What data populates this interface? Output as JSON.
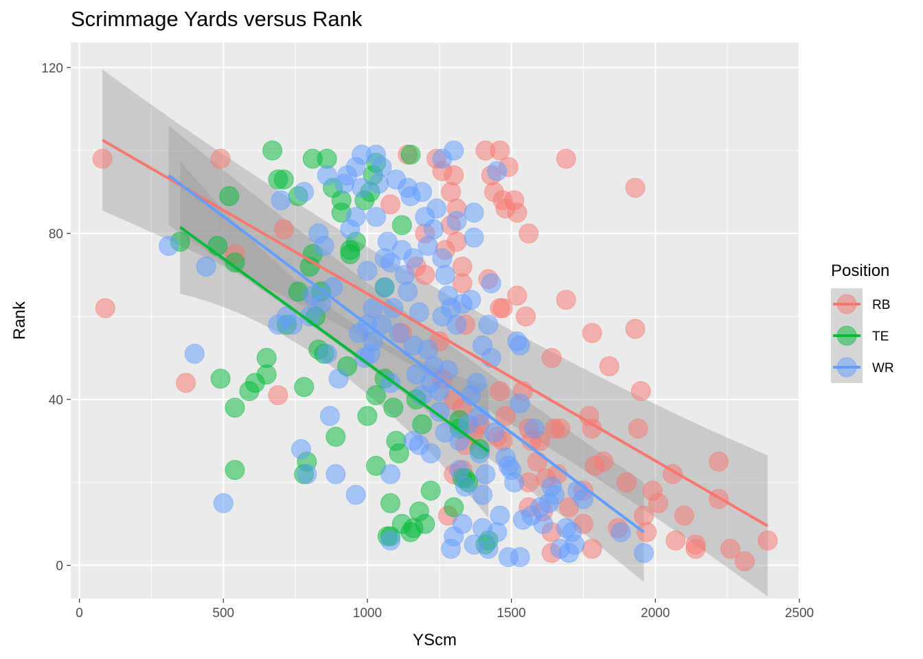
{
  "chart_data": {
    "type": "scatter",
    "title": "Scrimmage Yards versus Rank",
    "xlabel": "YScm",
    "ylabel": "Rank",
    "xlim": [
      -30,
      2500
    ],
    "ylim": [
      -8,
      126
    ],
    "xticks": [
      0,
      500,
      1000,
      1500,
      2000,
      2500
    ],
    "yticks": [
      0,
      40,
      80,
      120
    ],
    "grid": true,
    "legend": {
      "title": "Position",
      "placement": "right"
    },
    "series": [
      {
        "name": "RB",
        "color": "#F8766D",
        "fit": {
          "x": [
            80,
            2390
          ],
          "y": [
            102.5,
            9.5
          ],
          "band_half_width": [
            17,
            11
          ]
        },
        "points": [
          [
            80,
            98
          ],
          [
            90,
            62
          ],
          [
            490,
            98
          ],
          [
            540,
            75
          ],
          [
            370,
            44
          ],
          [
            690,
            41
          ],
          [
            710,
            81
          ],
          [
            1080,
            87
          ],
          [
            1120,
            56
          ],
          [
            1140,
            99
          ],
          [
            1170,
            72
          ],
          [
            1200,
            80
          ],
          [
            1200,
            70
          ],
          [
            1240,
            98
          ],
          [
            1260,
            95
          ],
          [
            1270,
            76
          ],
          [
            1290,
            82
          ],
          [
            1290,
            90
          ],
          [
            1300,
            94
          ],
          [
            1310,
            78
          ],
          [
            1310,
            86
          ],
          [
            1330,
            72
          ],
          [
            1330,
            68
          ],
          [
            1340,
            58
          ],
          [
            1250,
            54
          ],
          [
            1260,
            45
          ],
          [
            1300,
            40
          ],
          [
            1330,
            38
          ],
          [
            1340,
            29
          ],
          [
            1330,
            23
          ],
          [
            1300,
            22
          ],
          [
            1280,
            12
          ],
          [
            1410,
            100
          ],
          [
            1430,
            94
          ],
          [
            1440,
            90
          ],
          [
            1460,
            100
          ],
          [
            1470,
            88
          ],
          [
            1480,
            86
          ],
          [
            1490,
            96
          ],
          [
            1510,
            88
          ],
          [
            1520,
            85
          ],
          [
            1560,
            80
          ],
          [
            1420,
            69
          ],
          [
            1460,
            62
          ],
          [
            1470,
            62
          ],
          [
            1520,
            65
          ],
          [
            1550,
            60
          ],
          [
            1460,
            42
          ],
          [
            1480,
            36
          ],
          [
            1450,
            31
          ],
          [
            1470,
            30
          ],
          [
            1540,
            42
          ],
          [
            1560,
            33
          ],
          [
            1570,
            30
          ],
          [
            1590,
            25
          ],
          [
            1600,
            30
          ],
          [
            1620,
            21
          ],
          [
            1650,
            33
          ],
          [
            1670,
            33
          ],
          [
            1690,
            98
          ],
          [
            1640,
            50
          ],
          [
            1690,
            64
          ],
          [
            1780,
            56
          ],
          [
            1770,
            36
          ],
          [
            1780,
            33
          ],
          [
            1790,
            24
          ],
          [
            1750,
            18
          ],
          [
            1750,
            10
          ],
          [
            1700,
            14
          ],
          [
            1640,
            8
          ],
          [
            1640,
            3
          ],
          [
            1840,
            48
          ],
          [
            1820,
            25
          ],
          [
            1870,
            9
          ],
          [
            1900,
            20
          ],
          [
            1930,
            91
          ],
          [
            1930,
            57
          ],
          [
            1950,
            42
          ],
          [
            1940,
            33
          ],
          [
            1960,
            12
          ],
          [
            1970,
            8
          ],
          [
            1990,
            18
          ],
          [
            2010,
            15
          ],
          [
            2060,
            22
          ],
          [
            2070,
            6
          ],
          [
            2100,
            12
          ],
          [
            2140,
            5
          ],
          [
            2140,
            4
          ],
          [
            2220,
            25
          ],
          [
            2220,
            16
          ],
          [
            2260,
            4
          ],
          [
            2310,
            1
          ],
          [
            2390,
            6
          ],
          [
            1560,
            14
          ],
          [
            1610,
            13
          ],
          [
            1660,
            22
          ],
          [
            1780,
            4
          ],
          [
            1560,
            20
          ],
          [
            1370,
            32
          ],
          [
            1390,
            34
          ]
        ]
      },
      {
        "name": "TE",
        "color": "#00BA38",
        "fit": {
          "x": [
            350,
            1420
          ],
          "y": [
            81.5,
            27.5
          ],
          "band_half_width": [
            16,
            7
          ]
        },
        "points": [
          [
            350,
            78
          ],
          [
            480,
            77
          ],
          [
            490,
            45
          ],
          [
            520,
            89
          ],
          [
            540,
            73
          ],
          [
            540,
            38
          ],
          [
            540,
            23
          ],
          [
            590,
            42
          ],
          [
            610,
            44
          ],
          [
            650,
            50
          ],
          [
            650,
            46
          ],
          [
            670,
            100
          ],
          [
            690,
            93
          ],
          [
            710,
            93
          ],
          [
            720,
            58
          ],
          [
            760,
            66
          ],
          [
            760,
            89
          ],
          [
            780,
            43
          ],
          [
            790,
            25
          ],
          [
            780,
            22
          ],
          [
            800,
            72
          ],
          [
            810,
            75
          ],
          [
            810,
            98
          ],
          [
            820,
            60
          ],
          [
            830,
            52
          ],
          [
            840,
            66
          ],
          [
            850,
            51
          ],
          [
            860,
            98
          ],
          [
            880,
            91
          ],
          [
            890,
            31
          ],
          [
            910,
            85
          ],
          [
            910,
            88
          ],
          [
            930,
            48
          ],
          [
            940,
            76
          ],
          [
            940,
            75
          ],
          [
            960,
            78
          ],
          [
            990,
            88
          ],
          [
            1000,
            36
          ],
          [
            1010,
            90
          ],
          [
            1020,
            94
          ],
          [
            1030,
            97
          ],
          [
            1030,
            24
          ],
          [
            1030,
            41
          ],
          [
            1060,
            67
          ],
          [
            1070,
            7
          ],
          [
            1080,
            7
          ],
          [
            1080,
            15
          ],
          [
            1090,
            38
          ],
          [
            1110,
            27
          ],
          [
            1120,
            82
          ],
          [
            1120,
            10
          ],
          [
            1150,
            99
          ],
          [
            1150,
            8
          ],
          [
            1170,
            40
          ],
          [
            1160,
            9
          ],
          [
            1180,
            13
          ],
          [
            1190,
            34
          ],
          [
            1200,
            10
          ],
          [
            1220,
            18
          ],
          [
            1300,
            14
          ],
          [
            1320,
            35
          ],
          [
            1330,
            21
          ],
          [
            1340,
            21
          ],
          [
            1350,
            20
          ],
          [
            1420,
            6
          ],
          [
            1410,
            5
          ],
          [
            1320,
            33
          ],
          [
            1060,
            45
          ],
          [
            1100,
            30
          ],
          [
            1390,
            28
          ]
        ]
      },
      {
        "name": "WR",
        "color": "#619CFF",
        "fit": {
          "x": [
            310,
            1960
          ],
          "y": [
            94,
            8
          ],
          "band_half_width": [
            12,
            10
          ]
        },
        "points": [
          [
            310,
            77
          ],
          [
            400,
            51
          ],
          [
            440,
            72
          ],
          [
            500,
            15
          ],
          [
            690,
            58
          ],
          [
            700,
            88
          ],
          [
            720,
            60
          ],
          [
            740,
            58
          ],
          [
            770,
            28
          ],
          [
            780,
            90
          ],
          [
            790,
            22
          ],
          [
            800,
            60
          ],
          [
            810,
            65
          ],
          [
            830,
            80
          ],
          [
            840,
            63
          ],
          [
            850,
            77
          ],
          [
            860,
            94
          ],
          [
            860,
            51
          ],
          [
            870,
            36
          ],
          [
            880,
            67
          ],
          [
            890,
            22
          ],
          [
            900,
            45
          ],
          [
            920,
            92
          ],
          [
            930,
            94
          ],
          [
            940,
            81
          ],
          [
            960,
            84
          ],
          [
            960,
            17
          ],
          [
            960,
            96
          ],
          [
            970,
            56
          ],
          [
            980,
            99
          ],
          [
            980,
            91
          ],
          [
            990,
            50
          ],
          [
            1000,
            58
          ],
          [
            1000,
            71
          ],
          [
            1010,
            51
          ],
          [
            1020,
            54
          ],
          [
            1030,
            99
          ],
          [
            1030,
            84
          ],
          [
            1040,
            92
          ],
          [
            1050,
            96
          ],
          [
            1050,
            58
          ],
          [
            1060,
            74
          ],
          [
            1060,
            67
          ],
          [
            1070,
            78
          ],
          [
            1080,
            73
          ],
          [
            1080,
            22
          ],
          [
            1080,
            6
          ],
          [
            1090,
            62
          ],
          [
            1100,
            93
          ],
          [
            1110,
            56
          ],
          [
            1120,
            76
          ],
          [
            1130,
            70
          ],
          [
            1140,
            91
          ],
          [
            1140,
            66
          ],
          [
            1150,
            89
          ],
          [
            1160,
            74
          ],
          [
            1160,
            53
          ],
          [
            1160,
            30
          ],
          [
            1170,
            46
          ],
          [
            1180,
            29
          ],
          [
            1180,
            61
          ],
          [
            1190,
            90
          ],
          [
            1200,
            84
          ],
          [
            1210,
            77
          ],
          [
            1210,
            52
          ],
          [
            1220,
            44
          ],
          [
            1220,
            27
          ],
          [
            1230,
            48
          ],
          [
            1230,
            81
          ],
          [
            1240,
            86
          ],
          [
            1250,
            37
          ],
          [
            1250,
            42
          ],
          [
            1260,
            74
          ],
          [
            1260,
            60
          ],
          [
            1260,
            98
          ],
          [
            1270,
            70
          ],
          [
            1280,
            65
          ],
          [
            1280,
            47
          ],
          [
            1290,
            62
          ],
          [
            1290,
            4
          ],
          [
            1300,
            100
          ],
          [
            1300,
            7
          ],
          [
            1310,
            83
          ],
          [
            1310,
            58
          ],
          [
            1320,
            30
          ],
          [
            1320,
            23
          ],
          [
            1330,
            63
          ],
          [
            1340,
            19
          ],
          [
            1350,
            34
          ],
          [
            1360,
            41
          ],
          [
            1360,
            64
          ],
          [
            1370,
            79
          ],
          [
            1370,
            85
          ],
          [
            1370,
            5
          ],
          [
            1380,
            44
          ],
          [
            1390,
            36
          ],
          [
            1390,
            27
          ],
          [
            1400,
            53
          ],
          [
            1400,
            17
          ],
          [
            1400,
            9
          ],
          [
            1410,
            22
          ],
          [
            1420,
            4
          ],
          [
            1420,
            58
          ],
          [
            1430,
            50
          ],
          [
            1430,
            68
          ],
          [
            1440,
            32
          ],
          [
            1450,
            95
          ],
          [
            1450,
            8
          ],
          [
            1460,
            12
          ],
          [
            1480,
            26
          ],
          [
            1490,
            24
          ],
          [
            1490,
            2
          ],
          [
            1500,
            23
          ],
          [
            1510,
            20
          ],
          [
            1520,
            54
          ],
          [
            1530,
            53
          ],
          [
            1530,
            39
          ],
          [
            1540,
            11
          ],
          [
            1530,
            2
          ],
          [
            1570,
            12
          ],
          [
            1580,
            33
          ],
          [
            1600,
            14
          ],
          [
            1610,
            10
          ],
          [
            1630,
            15
          ],
          [
            1640,
            19
          ],
          [
            1650,
            17
          ],
          [
            1670,
            4
          ],
          [
            1690,
            9
          ],
          [
            1700,
            3
          ],
          [
            1710,
            8
          ],
          [
            1720,
            5
          ],
          [
            1730,
            18
          ],
          [
            1750,
            16
          ],
          [
            1880,
            8
          ],
          [
            1960,
            3
          ],
          [
            1020,
            62
          ],
          [
            1080,
            44
          ],
          [
            1190,
            41
          ],
          [
            1270,
            32
          ],
          [
            1330,
            10
          ]
        ]
      }
    ]
  }
}
